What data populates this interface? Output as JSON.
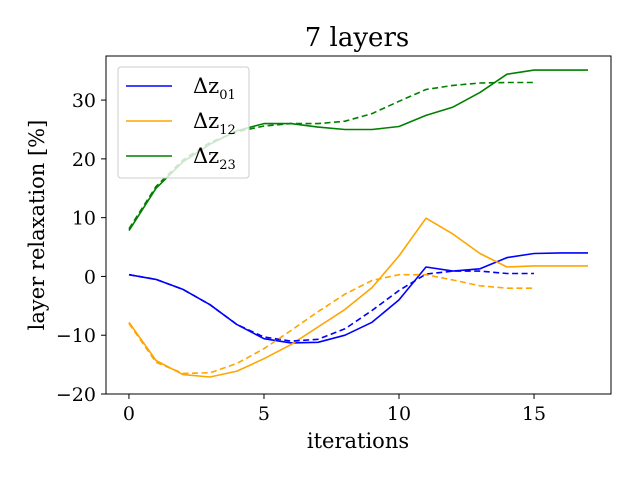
{
  "chart_data": {
    "type": "line",
    "title": "7 layers",
    "xlabel": "iterations",
    "ylabel": "layer relaxation [%]",
    "xlim": [
      -0.85,
      17.85
    ],
    "ylim": [
      -20,
      37.5
    ],
    "xticks": [
      0,
      5,
      10,
      15
    ],
    "yticks": [
      -20,
      -10,
      0,
      10,
      20,
      30
    ],
    "grid": false,
    "legend": "top-left",
    "series": [
      {
        "name": "Δz01",
        "base": "Δz",
        "sub": "01",
        "color": "#0000ff",
        "style": "solid",
        "x": [
          0,
          1,
          2,
          3,
          4,
          5,
          6,
          7,
          8,
          9,
          10,
          11,
          12,
          13,
          14,
          15,
          16,
          17
        ],
        "y": [
          0.3,
          -0.5,
          -2.2,
          -4.8,
          -8.2,
          -10.6,
          -11.3,
          -11.2,
          -10.0,
          -7.8,
          -4.0,
          1.6,
          0.9,
          1.3,
          3.2,
          3.9,
          4.0,
          4.0
        ]
      },
      {
        "name": "Δz12",
        "base": "Δz",
        "sub": "12",
        "color": "#ffa500",
        "style": "solid",
        "x": [
          0,
          1,
          2,
          3,
          4,
          5,
          6,
          7,
          8,
          9,
          10,
          11,
          12,
          13,
          14,
          15,
          16,
          17
        ],
        "y": [
          -7.8,
          -14.3,
          -16.7,
          -17.1,
          -16.1,
          -14.0,
          -11.6,
          -8.6,
          -5.6,
          -1.9,
          3.5,
          9.9,
          7.2,
          3.9,
          1.6,
          1.8,
          1.8,
          1.8
        ]
      },
      {
        "name": "Δz23",
        "base": "Δz",
        "sub": "23",
        "color": "#008000",
        "style": "solid",
        "x": [
          0,
          1,
          2,
          3,
          4,
          5,
          6,
          7,
          8,
          9,
          10,
          11,
          12,
          13,
          14,
          15,
          16,
          17
        ],
        "y": [
          7.8,
          15.0,
          19.5,
          22.5,
          24.8,
          26.0,
          26.0,
          25.4,
          25.0,
          25.0,
          25.5,
          27.4,
          28.8,
          31.3,
          34.4,
          35.1,
          35.1,
          35.1
        ]
      },
      {
        "color": "#0000ff",
        "style": "dashed",
        "x": [
          0,
          1,
          2,
          3,
          4,
          5,
          6,
          7,
          8,
          9,
          10,
          11,
          12,
          13,
          14,
          15
        ],
        "y": [
          0.3,
          -0.5,
          -2.2,
          -4.8,
          -8.2,
          -10.3,
          -11.0,
          -10.7,
          -8.9,
          -5.8,
          -2.4,
          0.4,
          0.9,
          0.9,
          0.5,
          0.5
        ]
      },
      {
        "color": "#ffa500",
        "style": "dashed",
        "x": [
          0,
          1,
          2,
          3,
          4,
          5,
          6,
          7,
          8,
          9,
          10,
          11,
          12,
          13,
          14,
          15
        ],
        "y": [
          -8.0,
          -14.6,
          -16.5,
          -16.4,
          -14.8,
          -12.3,
          -9.2,
          -6.0,
          -3.0,
          -0.7,
          0.3,
          0.3,
          -0.6,
          -1.6,
          -2.0,
          -2.0
        ]
      },
      {
        "color": "#008000",
        "style": "dashed",
        "x": [
          0,
          1,
          2,
          3,
          4,
          5,
          6,
          7,
          8,
          9,
          10,
          11,
          12,
          13,
          14,
          15
        ],
        "y": [
          8.1,
          15.3,
          19.8,
          22.8,
          24.6,
          25.6,
          26.0,
          26.0,
          26.4,
          27.7,
          29.8,
          31.8,
          32.5,
          32.9,
          33.0,
          33.0
        ]
      }
    ]
  }
}
